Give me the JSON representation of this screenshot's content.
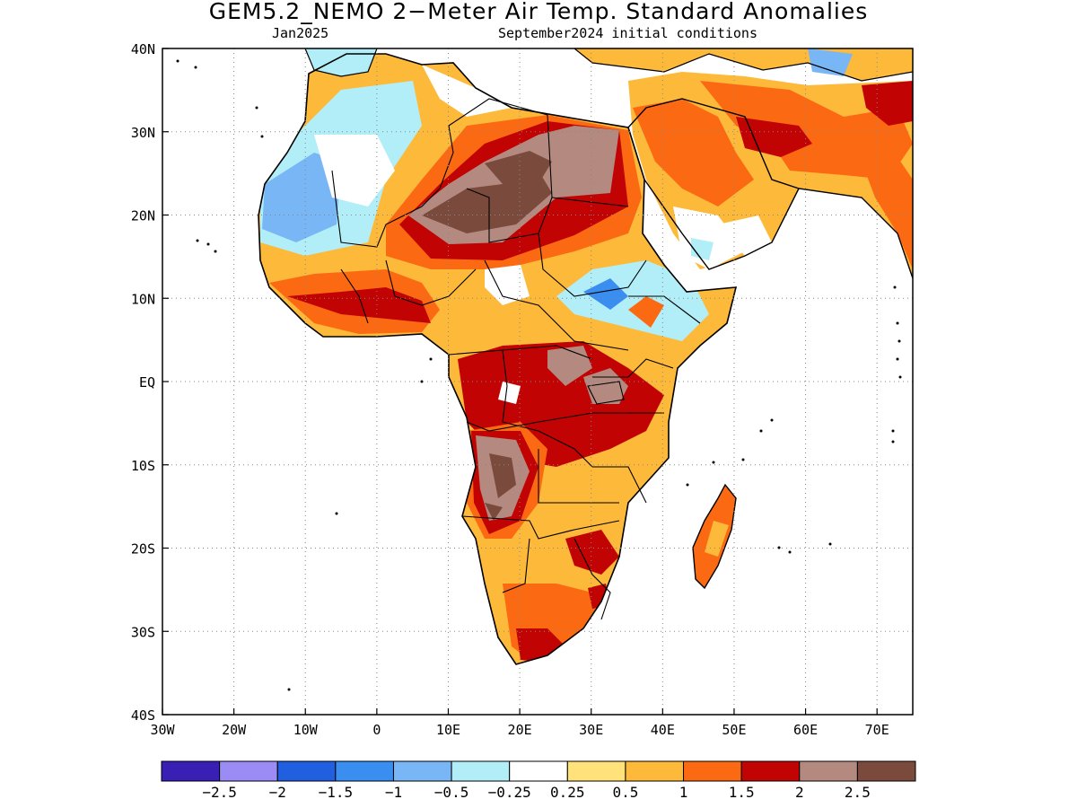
{
  "title": "GEM5.2_NEMO 2−Meter Air Temp. Standard Anomalies",
  "subtitle_left": "Jan2025",
  "subtitle_right": "September2024 initial conditions",
  "map": {
    "lon_range": [
      -30,
      75
    ],
    "lat_range": [
      -40,
      40
    ],
    "lon_ticks": [
      {
        "value": -30,
        "label": "30W"
      },
      {
        "value": -20,
        "label": "20W"
      },
      {
        "value": -10,
        "label": "10W"
      },
      {
        "value": 0,
        "label": "0"
      },
      {
        "value": 10,
        "label": "10E"
      },
      {
        "value": 20,
        "label": "20E"
      },
      {
        "value": 30,
        "label": "30E"
      },
      {
        "value": 40,
        "label": "40E"
      },
      {
        "value": 50,
        "label": "50E"
      },
      {
        "value": 60,
        "label": "60E"
      },
      {
        "value": 70,
        "label": "70E"
      }
    ],
    "lat_ticks": [
      {
        "value": 40,
        "label": "40N"
      },
      {
        "value": 30,
        "label": "30N"
      },
      {
        "value": 20,
        "label": "20N"
      },
      {
        "value": 10,
        "label": "10N"
      },
      {
        "value": 0,
        "label": "EQ"
      },
      {
        "value": -10,
        "label": "10S"
      },
      {
        "value": -20,
        "label": "20S"
      },
      {
        "value": -30,
        "label": "30S"
      },
      {
        "value": -40,
        "label": "40S"
      }
    ],
    "grid": "dotted"
  },
  "colorbar": {
    "colors": [
      "#3a1fb5",
      "#9b8cf5",
      "#1f5fe0",
      "#3a8ef0",
      "#79b6f5",
      "#b2eef8",
      "#ffffff",
      "#ffe27a",
      "#fdb93a",
      "#fb6a12",
      "#c10303",
      "#b48a80",
      "#7a4a3d"
    ],
    "labels": [
      "−2.5",
      "−2",
      "−1.5",
      "−1",
      "−0.5",
      "−0.25",
      "0.25",
      "0.5",
      "1",
      "1.5",
      "2",
      "2.5"
    ]
  }
}
